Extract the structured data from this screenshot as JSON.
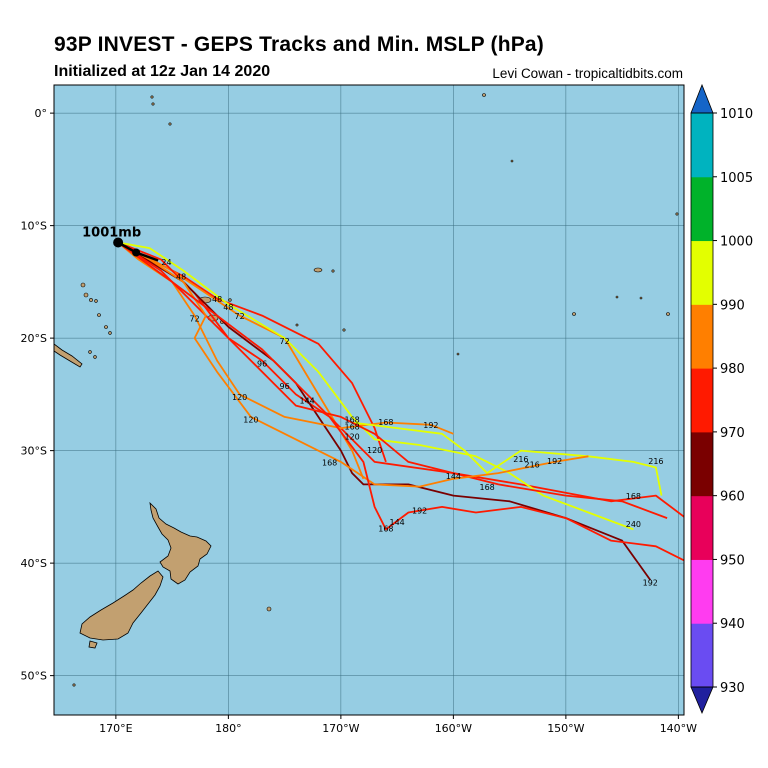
{
  "header": {
    "title": "93P INVEST - GEPS Tracks and Min. MSLP (hPa)",
    "init": "Initialized at 12z Jan 14 2020",
    "credit": "Levi Cowan - tropicaltidbits.com"
  },
  "map": {
    "ocean_color": "#96cde3",
    "land_color": "#c2a070",
    "lon_ticks": [
      "170°E",
      "180°",
      "170°W",
      "160°W",
      "150°W",
      "140°W"
    ],
    "lat_ticks": [
      "0°",
      "10°S",
      "20°S",
      "30°S",
      "40°S",
      "50°S"
    ],
    "lon_range": [
      164.5,
      220.5
    ],
    "lat_range": [
      -53.5,
      2.5
    ],
    "min_pressure_label": "1001mb"
  },
  "colorbar": {
    "ticks": [
      "930",
      "940",
      "950",
      "960",
      "970",
      "980",
      "990",
      "1000",
      "1005",
      "1010"
    ],
    "colors": [
      "#6a4cf2",
      "#ff3cf0",
      "#e8005a",
      "#7a0000",
      "#ff1a00",
      "#ff7f00",
      "#e3ff00",
      "#00b22a",
      "#00b3bf",
      "#1565c8"
    ],
    "under_color": "#20209e",
    "over_color": "#1565c8"
  },
  "chart_data": {
    "type": "map-tracks",
    "title": "93P INVEST - GEPS Tracks and Min. MSLP (hPa)",
    "subtitle": "Initialized at 12z Jan 14 2020",
    "colorbar_label_values": [
      930,
      940,
      950,
      960,
      970,
      980,
      990,
      1000,
      1005,
      1010
    ],
    "start": {
      "lon": 170.2,
      "lat": -11.5,
      "label": "1001mb"
    },
    "tracks": [
      {
        "color": "#ff1a00",
        "points": [
          [
            170.2,
            -11.5
          ],
          [
            176,
            -14.5
          ],
          [
            179,
            -16.5
          ],
          [
            183,
            -18
          ],
          [
            188,
            -20.5
          ],
          [
            191,
            -24
          ],
          [
            193,
            -28
          ],
          [
            194,
            -31
          ]
        ],
        "labels": [
          {
            "lon": 175.8,
            "lat": -14.8,
            "t": "48"
          },
          {
            "lon": 179,
            "lat": -16.8,
            "t": "48"
          },
          {
            "lon": 191,
            "lat": -28.1,
            "t": "168"
          },
          {
            "lon": 193,
            "lat": -30.2,
            "t": "120"
          }
        ]
      },
      {
        "color": "#ff7f00",
        "points": [
          [
            170.2,
            -11.5
          ],
          [
            175,
            -14
          ],
          [
            178,
            -16
          ],
          [
            181,
            -18
          ],
          [
            185,
            -20
          ],
          [
            188,
            -25
          ],
          [
            191,
            -30
          ],
          [
            192,
            -32.5
          ]
        ],
        "labels": [
          {
            "lon": 174.5,
            "lat": -13.5,
            "t": "24"
          },
          {
            "lon": 181,
            "lat": -18.3,
            "t": "72"
          },
          {
            "lon": 185,
            "lat": -20.5,
            "t": "72"
          },
          {
            "lon": 191,
            "lat": -29,
            "t": "120"
          }
        ]
      },
      {
        "color": "#ff1a00",
        "points": [
          [
            170.2,
            -11.5
          ],
          [
            174,
            -13
          ],
          [
            177,
            -16
          ],
          [
            180,
            -20
          ],
          [
            183,
            -22
          ],
          [
            186,
            -25
          ],
          [
            189,
            -27
          ],
          [
            193,
            -31
          ],
          [
            200,
            -32
          ],
          [
            206,
            -33
          ],
          [
            214,
            -34.5
          ],
          [
            218,
            -34
          ],
          [
            222,
            -37
          ]
        ],
        "labels": [
          {
            "lon": 183,
            "lat": -22.5,
            "t": "96"
          },
          {
            "lon": 187,
            "lat": -25.8,
            "t": "144"
          },
          {
            "lon": 200,
            "lat": -32.5,
            "t": "144"
          },
          {
            "lon": 216,
            "lat": -34.3,
            "t": "168"
          },
          {
            "lon": 222,
            "lat": -36.8,
            "t": "192"
          }
        ]
      },
      {
        "color": "#7a0000",
        "points": [
          [
            170.2,
            -11.5
          ],
          [
            176,
            -15
          ],
          [
            180,
            -19
          ],
          [
            184,
            -22
          ],
          [
            186,
            -24
          ],
          [
            188,
            -27
          ],
          [
            190,
            -30
          ],
          [
            191,
            -32
          ],
          [
            192,
            -33
          ],
          [
            196,
            -33
          ],
          [
            200,
            -34
          ],
          [
            205,
            -34.5
          ],
          [
            210,
            -36
          ],
          [
            215,
            -38
          ],
          [
            217.5,
            -41.5
          ]
        ],
        "labels": [
          {
            "lon": 185,
            "lat": -24.5,
            "t": "96"
          },
          {
            "lon": 217.5,
            "lat": -42,
            "t": "192"
          }
        ]
      },
      {
        "color": "#e3ff00",
        "points": [
          [
            170.2,
            -11.5
          ],
          [
            173,
            -12
          ],
          [
            176,
            -14
          ],
          [
            180,
            -17
          ],
          [
            185,
            -20
          ],
          [
            188,
            -23
          ],
          [
            191,
            -27
          ],
          [
            193,
            -29
          ],
          [
            197,
            -29.5
          ],
          [
            202,
            -30.5
          ],
          [
            205,
            -32
          ],
          [
            208,
            -34
          ],
          [
            212,
            -35.5
          ],
          [
            216,
            -37
          ]
        ],
        "labels": [
          {
            "lon": 180,
            "lat": -17.5,
            "t": "48"
          },
          {
            "lon": 191,
            "lat": -27.5,
            "t": "168"
          },
          {
            "lon": 207,
            "lat": -31.5,
            "t": "216"
          },
          {
            "lon": 216,
            "lat": -36.8,
            "t": "240"
          }
        ]
      },
      {
        "color": "#ff7f00",
        "points": [
          [
            170.2,
            -11.5
          ],
          [
            172,
            -13
          ],
          [
            175,
            -15
          ],
          [
            177,
            -18
          ],
          [
            179,
            -22
          ],
          [
            181,
            -25
          ],
          [
            185,
            -27
          ],
          [
            190,
            -28
          ],
          [
            194,
            -27.5
          ],
          [
            198,
            -27.7
          ],
          [
            200,
            -28.5
          ]
        ],
        "labels": [
          {
            "lon": 177,
            "lat": -18.5,
            "t": "72"
          },
          {
            "lon": 181,
            "lat": -25.5,
            "t": "120"
          },
          {
            "lon": 194,
            "lat": -27.7,
            "t": "168"
          },
          {
            "lon": 198,
            "lat": -28,
            "t": "192"
          }
        ]
      },
      {
        "color": "#e3ff00",
        "points": [
          [
            191,
            -27.5
          ],
          [
            195,
            -28
          ],
          [
            199,
            -28.5
          ],
          [
            201,
            -30
          ],
          [
            203,
            -32
          ],
          [
            206,
            -30
          ],
          [
            212,
            -30.5
          ],
          [
            216,
            -31
          ],
          [
            218,
            -31.5
          ],
          [
            218.5,
            -34
          ]
        ],
        "labels": [
          {
            "lon": 206,
            "lat": -31,
            "t": "216"
          },
          {
            "lon": 218,
            "lat": -31.2,
            "t": "216"
          }
        ]
      },
      {
        "color": "#ff1a00",
        "points": [
          [
            170.2,
            -11.5
          ],
          [
            174,
            -14
          ],
          [
            177,
            -17
          ],
          [
            180,
            -20
          ],
          [
            182,
            -22
          ],
          [
            184,
            -24
          ],
          [
            186,
            -26
          ],
          [
            190,
            -27
          ],
          [
            193,
            -28.5
          ],
          [
            196,
            -31
          ],
          [
            200,
            -32
          ],
          [
            204,
            -33
          ],
          [
            210,
            -34
          ],
          [
            215,
            -34.5
          ],
          [
            219,
            -36
          ]
        ],
        "labels": [
          {
            "lon": 189,
            "lat": -31.3,
            "t": "168"
          },
          {
            "lon": 203,
            "lat": -33.5,
            "t": "168"
          }
        ]
      },
      {
        "color": "#ff7f00",
        "points": [
          [
            170.2,
            -11.5
          ],
          [
            173,
            -13
          ],
          [
            176,
            -15
          ],
          [
            178,
            -18
          ],
          [
            177,
            -20
          ],
          [
            179,
            -23
          ],
          [
            182,
            -27
          ],
          [
            186,
            -29
          ],
          [
            190,
            -31
          ],
          [
            193,
            -33
          ],
          [
            197,
            -33.2
          ],
          [
            200,
            -32.5
          ],
          [
            204,
            -32
          ],
          [
            209,
            -31
          ],
          [
            212,
            -30.5
          ]
        ],
        "labels": [
          {
            "lon": 182,
            "lat": -27.5,
            "t": "120"
          },
          {
            "lon": 197,
            "lat": -35.6,
            "t": "192"
          },
          {
            "lon": 209,
            "lat": -31.2,
            "t": "192"
          }
        ]
      },
      {
        "color": "#ff1a00",
        "points": [
          [
            170.2,
            -11.5
          ],
          [
            175,
            -15
          ],
          [
            179,
            -18
          ],
          [
            183,
            -21
          ],
          [
            186,
            -24
          ],
          [
            189,
            -27
          ],
          [
            192,
            -31
          ],
          [
            193,
            -35
          ],
          [
            194,
            -37
          ],
          [
            196,
            -35.5
          ],
          [
            199,
            -35
          ],
          [
            202,
            -35.5
          ],
          [
            206,
            -35
          ],
          [
            210,
            -36
          ],
          [
            214,
            -38
          ],
          [
            218,
            -38.5
          ],
          [
            222,
            -40.5
          ]
        ],
        "labels": [
          {
            "lon": 194,
            "lat": -37.2,
            "t": "168"
          },
          {
            "lon": 195,
            "lat": -36.6,
            "t": "144"
          },
          {
            "lon": 222,
            "lat": -40.5,
            "t": "192"
          }
        ]
      }
    ]
  }
}
